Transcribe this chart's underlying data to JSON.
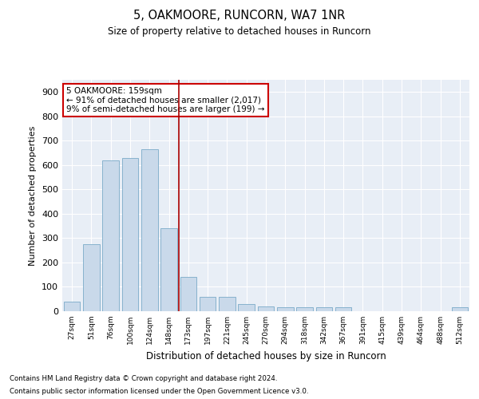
{
  "title": "5, OAKMOORE, RUNCORN, WA7 1NR",
  "subtitle": "Size of property relative to detached houses in Runcorn",
  "xlabel": "Distribution of detached houses by size in Runcorn",
  "ylabel": "Number of detached properties",
  "bar_color": "#c9d9ea",
  "bar_edge_color": "#7aaac8",
  "background_color": "#e8eef6",
  "vline_color": "#aa0000",
  "annotation_lines": [
    "5 OAKMOORE: 159sqm",
    "← 91% of detached houses are smaller (2,017)",
    "9% of semi-detached houses are larger (199) →"
  ],
  "categories": [
    "27sqm",
    "51sqm",
    "76sqm",
    "100sqm",
    "124sqm",
    "148sqm",
    "173sqm",
    "197sqm",
    "221sqm",
    "245sqm",
    "270sqm",
    "294sqm",
    "318sqm",
    "342sqm",
    "367sqm",
    "391sqm",
    "415sqm",
    "439sqm",
    "464sqm",
    "488sqm",
    "512sqm"
  ],
  "values": [
    40,
    275,
    620,
    630,
    665,
    340,
    140,
    60,
    60,
    30,
    20,
    15,
    15,
    15,
    15,
    0,
    0,
    0,
    0,
    0,
    15
  ],
  "ylim": [
    0,
    950
  ],
  "yticks": [
    0,
    100,
    200,
    300,
    400,
    500,
    600,
    700,
    800,
    900
  ],
  "vline_pos": 5.5,
  "footnote1": "Contains HM Land Registry data © Crown copyright and database right 2024.",
  "footnote2": "Contains public sector information licensed under the Open Government Licence v3.0."
}
